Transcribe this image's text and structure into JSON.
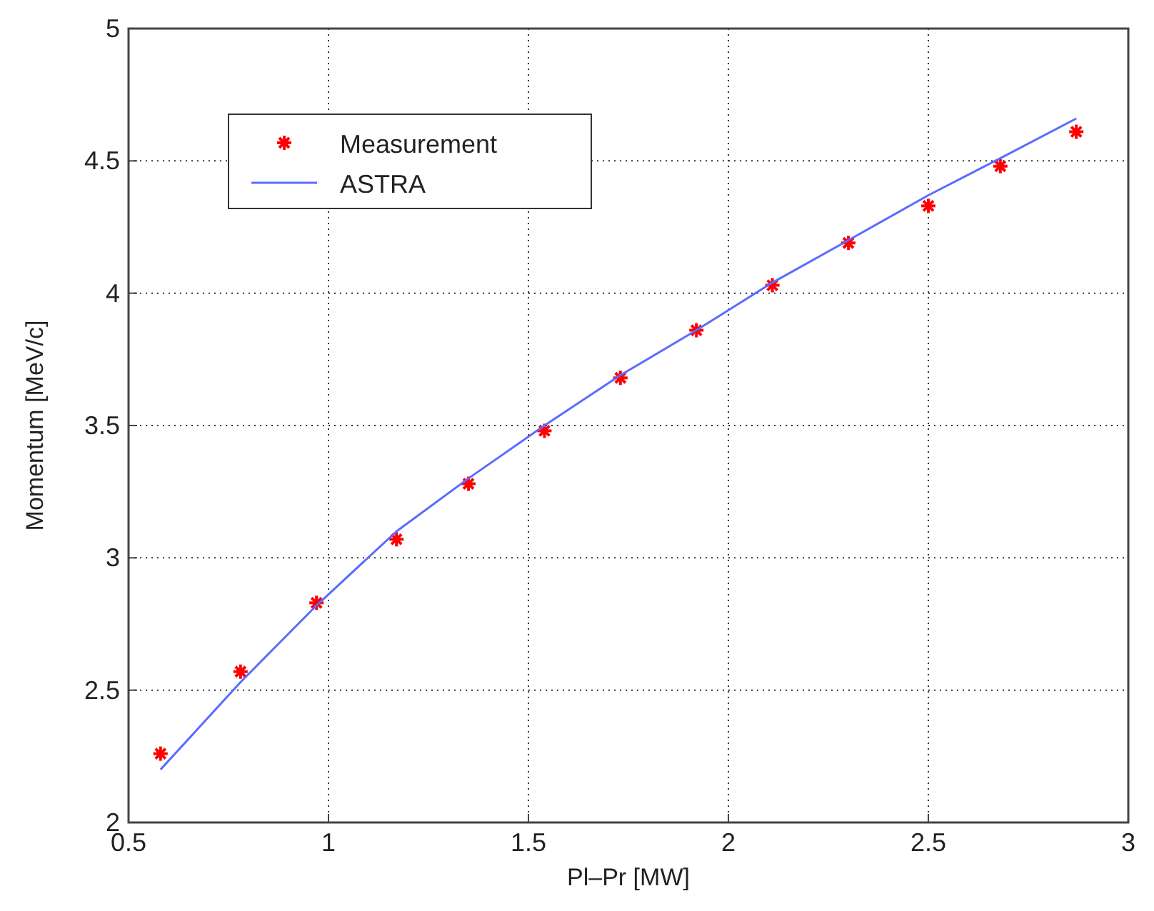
{
  "chart_data": {
    "type": "scatter",
    "xlabel": "Pl–Pr [MW]",
    "ylabel": "Momentum [MeV/c]",
    "xlim": [
      0.5,
      3
    ],
    "ylim": [
      2,
      5
    ],
    "xticks": [
      0.5,
      1,
      1.5,
      2,
      2.5,
      3
    ],
    "yticks": [
      2,
      2.5,
      3,
      3.5,
      4,
      4.5,
      5
    ],
    "grid": true,
    "legend": "top left",
    "series": [
      {
        "name": "Measurement",
        "marker": "cross",
        "color": "#ff0000",
        "x": [
          0.58,
          0.78,
          0.97,
          1.17,
          1.35,
          1.54,
          1.73,
          1.92,
          2.11,
          2.3,
          2.5,
          2.68,
          2.87
        ],
        "values": [
          2.26,
          2.57,
          2.83,
          3.07,
          3.28,
          3.48,
          3.68,
          3.86,
          4.03,
          4.19,
          4.33,
          4.48,
          4.61
        ]
      },
      {
        "name": "ASTRA",
        "type": "line",
        "marker": "none",
        "line_style": "solid",
        "color": "#5a6cff",
        "x": [
          0.58,
          0.78,
          0.97,
          1.17,
          1.35,
          1.54,
          1.73,
          1.92,
          2.11,
          2.3,
          2.5,
          2.68,
          2.87
        ],
        "values": [
          2.2,
          2.53,
          2.82,
          3.1,
          3.3,
          3.5,
          3.69,
          3.86,
          4.04,
          4.2,
          4.37,
          4.51,
          4.66
        ]
      }
    ]
  }
}
